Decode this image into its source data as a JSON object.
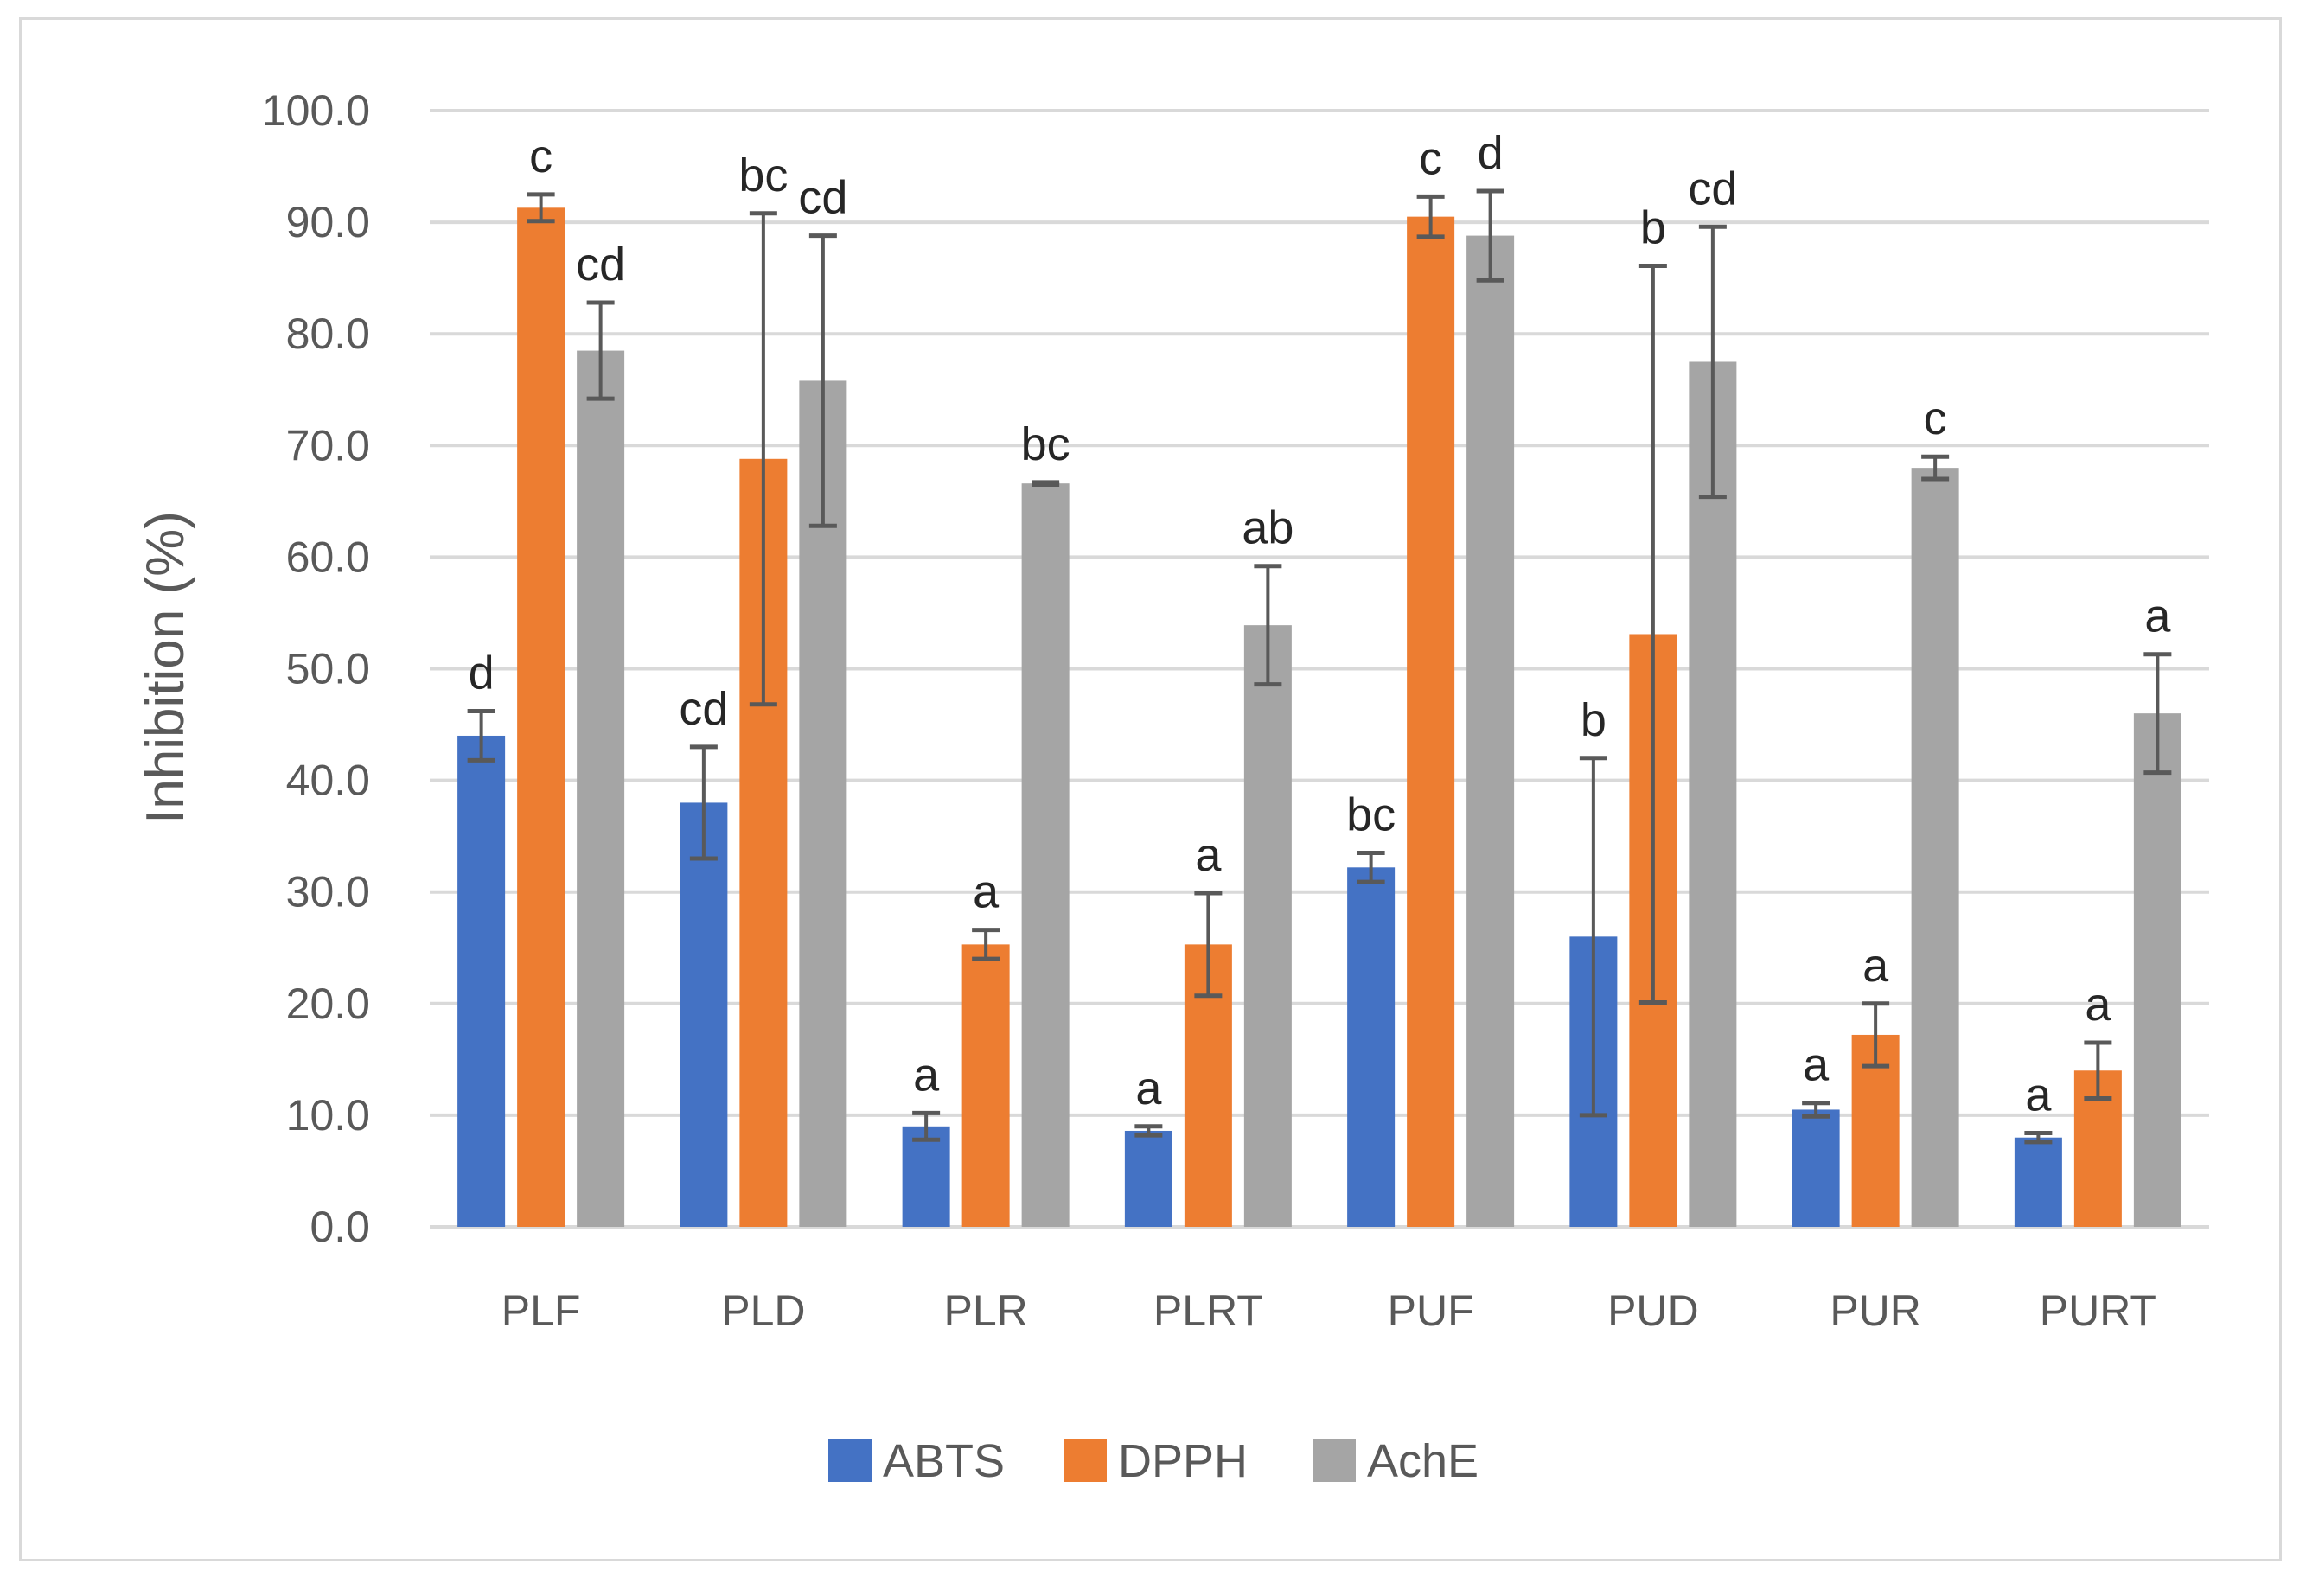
{
  "chart_data": {
    "type": "bar",
    "title": "",
    "xlabel": "",
    "ylabel": "Inhibition (%)",
    "ylim": [
      0,
      100
    ],
    "yticks": [
      "0.0",
      "10.0",
      "20.0",
      "30.0",
      "40.0",
      "50.0",
      "60.0",
      "70.0",
      "80.0",
      "90.0",
      "100.0"
    ],
    "grid": true,
    "legend_position": "bottom",
    "categories": [
      "PLF",
      "PLD",
      "PLR",
      "PLRT",
      "PUF",
      "PUD",
      "PUR",
      "PURT"
    ],
    "series": [
      {
        "name": "ABTS",
        "color": "#4472c4",
        "values": [
          44.0,
          38.0,
          9.0,
          8.6,
          32.2,
          26.0,
          10.5,
          8.0
        ],
        "errors": [
          2.2,
          5.0,
          1.2,
          0.4,
          1.3,
          16.0,
          0.6,
          0.4
        ],
        "labels": [
          "d",
          "cd",
          "a",
          "a",
          "bc",
          "b",
          "a",
          "a"
        ]
      },
      {
        "name": "DPPH",
        "color": "#ed7d31",
        "values": [
          91.3,
          68.8,
          25.3,
          25.3,
          90.5,
          53.1,
          17.2,
          14.0
        ],
        "errors": [
          1.2,
          22.0,
          1.3,
          4.6,
          1.8,
          33.0,
          2.8,
          2.5
        ],
        "labels": [
          "c",
          "bc",
          "a",
          "a",
          "c",
          "b",
          "a",
          "a"
        ]
      },
      {
        "name": "AchE",
        "color": "#a5a5a5",
        "values": [
          78.5,
          75.8,
          66.6,
          53.9,
          88.8,
          77.5,
          68.0,
          46.0
        ],
        "errors": [
          4.3,
          13.0,
          0.1,
          5.3,
          4.0,
          12.1,
          1.0,
          5.3
        ],
        "labels": [
          "cd",
          "cd",
          "bc",
          "ab",
          "d",
          "cd",
          "c",
          "a"
        ]
      }
    ]
  }
}
